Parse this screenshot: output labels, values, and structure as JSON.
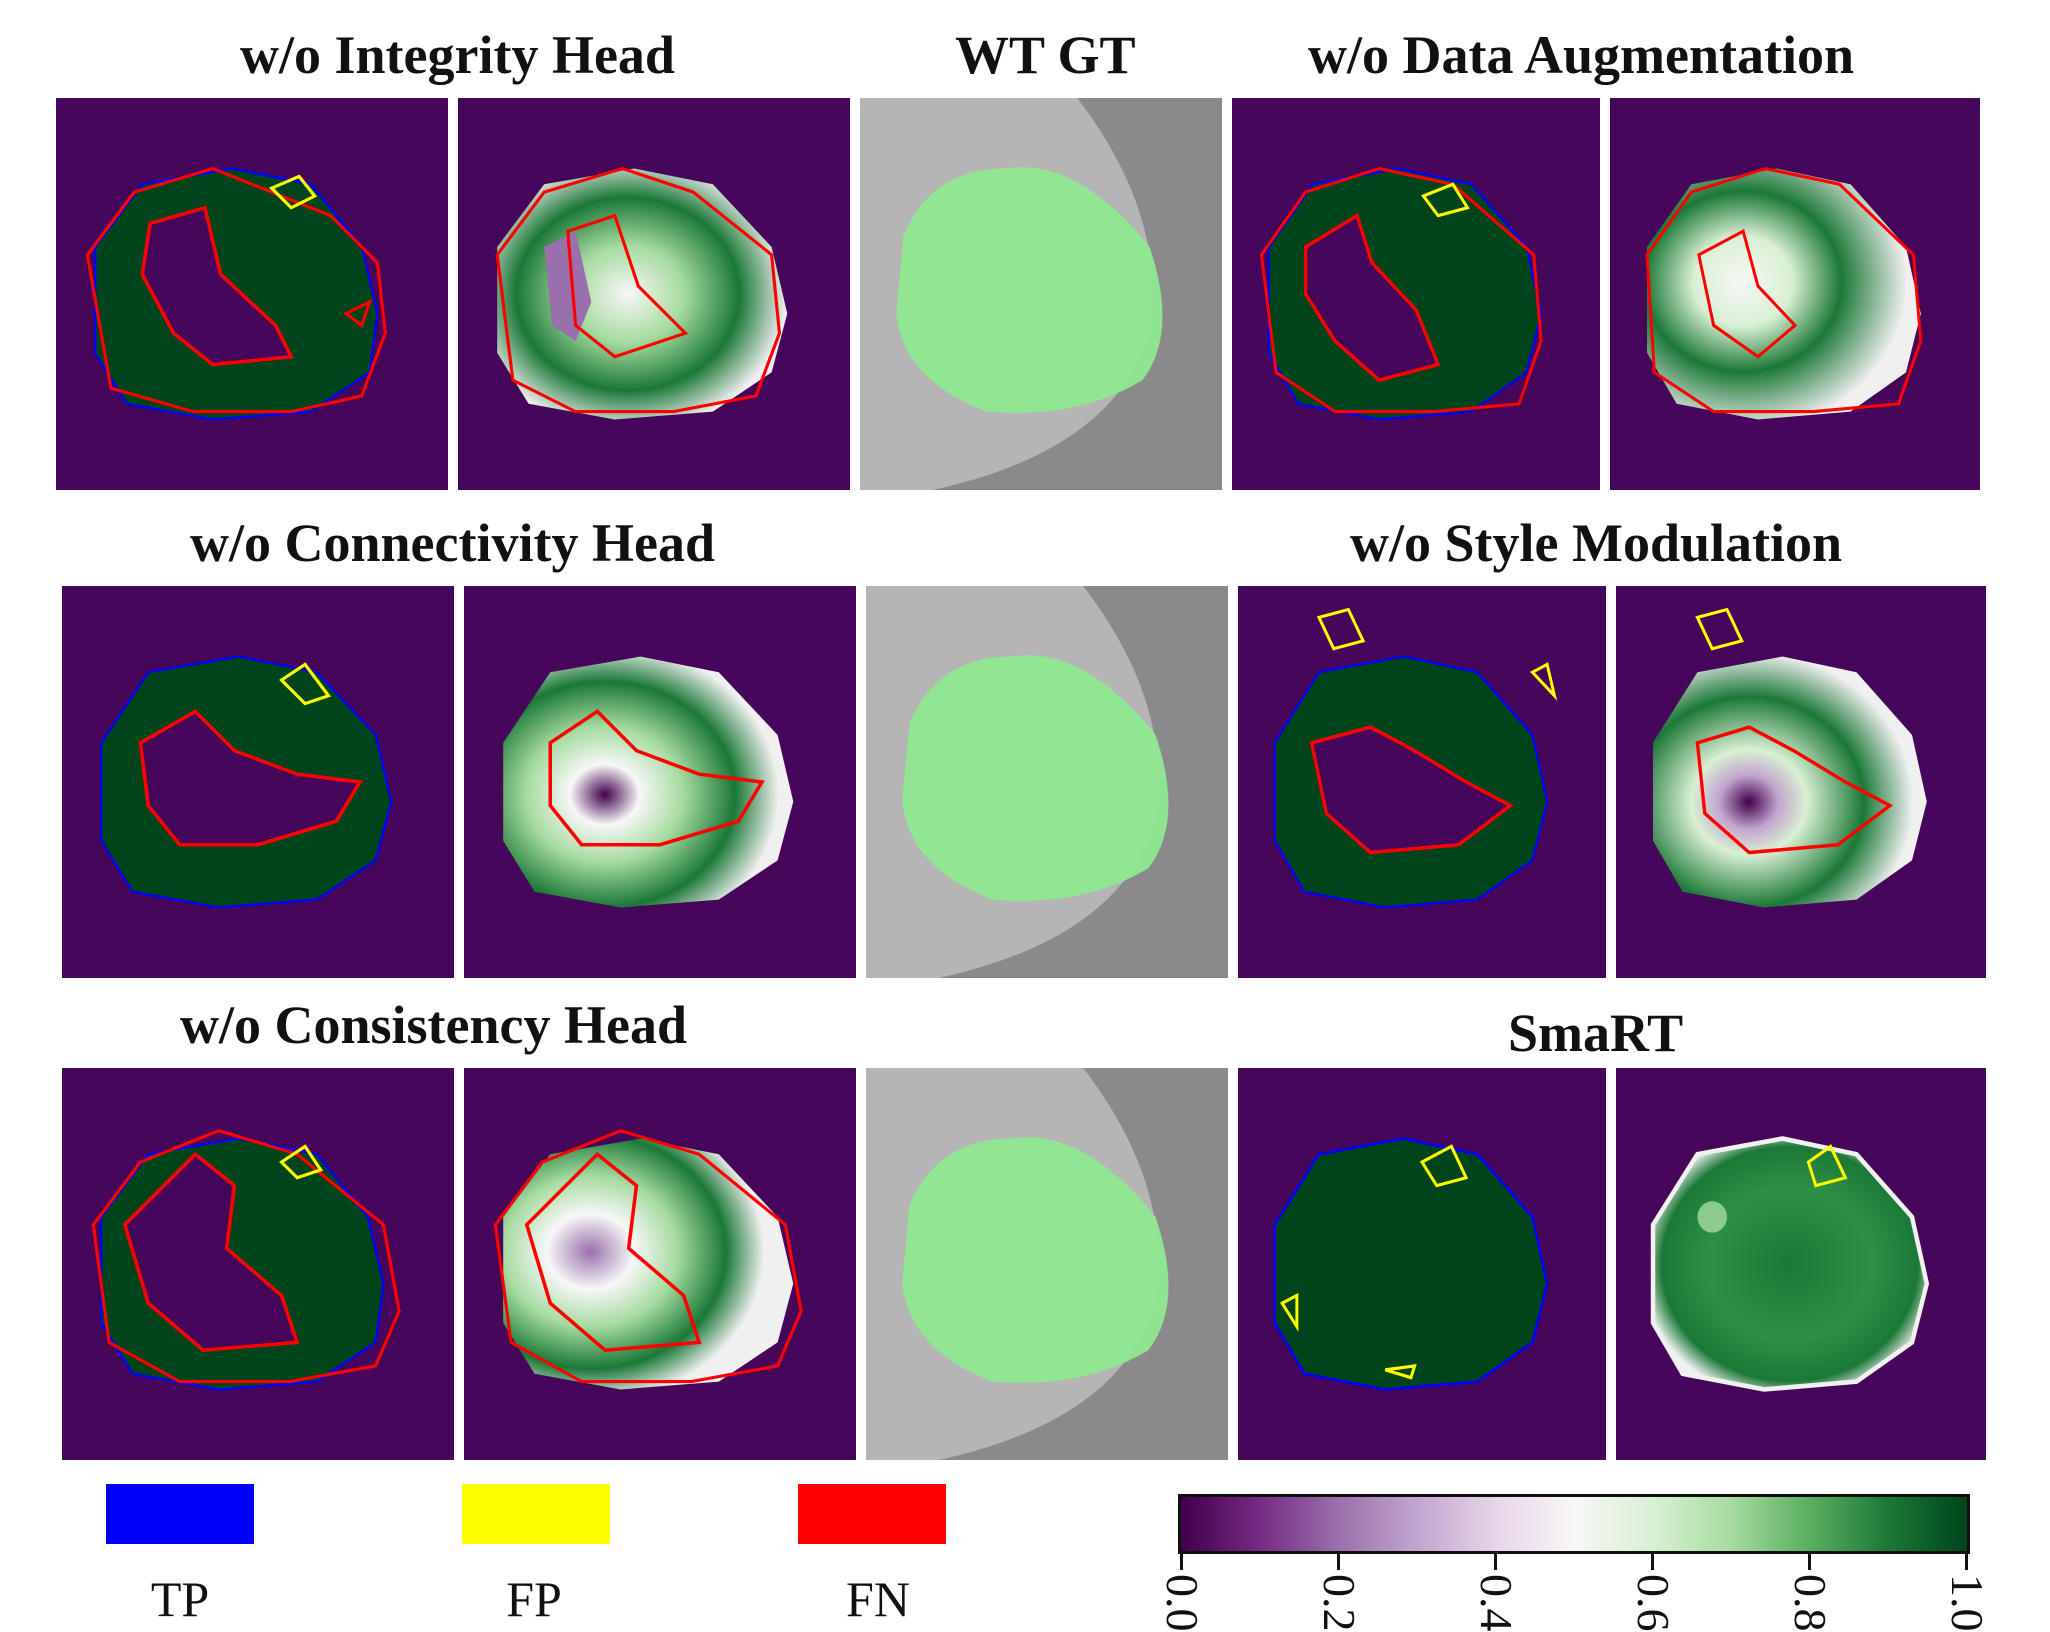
{
  "titles": {
    "integrity": "w/o Integrity Head",
    "wt_gt": "WT GT",
    "data_aug": "w/o Data Augmentation",
    "connectivity": "w/o Connectivity Head",
    "style": "w/o Style Modulation",
    "consistency": "w/o Consistency Head",
    "smart": "SmaRT"
  },
  "legend": {
    "tp": "TP",
    "fp": "FP",
    "fn": "FN",
    "tp_color": "#0000ff",
    "fp_color": "#ffff00",
    "fn_color": "#ff0000"
  },
  "colorbar": {
    "ticks": [
      "0.0",
      "0.2",
      "0.4",
      "0.6",
      "0.8",
      "1.0"
    ],
    "range": [
      0.0,
      1.0
    ],
    "colormap": "PRGn"
  },
  "colors": {
    "background_panel": "#46075a",
    "tp_region": "#00441b",
    "gt_overlay": "#90e890",
    "mri_gray": "#8a8a8a"
  },
  "ablation_panels": [
    {
      "id": "integrity-seg",
      "hole": "large",
      "fn_level": "high"
    },
    {
      "id": "integrity-conf",
      "hole": "large",
      "fn_level": "high"
    },
    {
      "id": "data-aug-seg",
      "hole": "large",
      "fn_level": "high"
    },
    {
      "id": "data-aug-conf",
      "hole": "large",
      "fn_level": "high"
    },
    {
      "id": "connectivity-seg",
      "hole": "medium",
      "fn_level": "medium"
    },
    {
      "id": "connectivity-conf",
      "hole": "medium",
      "fn_level": "medium"
    },
    {
      "id": "style-seg",
      "hole": "medium",
      "fn_level": "medium"
    },
    {
      "id": "style-conf",
      "hole": "medium",
      "fn_level": "medium"
    },
    {
      "id": "consistency-seg",
      "hole": "large",
      "fn_level": "high"
    },
    {
      "id": "consistency-conf",
      "hole": "large",
      "fn_level": "high"
    },
    {
      "id": "smart-seg",
      "hole": "none",
      "fn_level": "low"
    },
    {
      "id": "smart-conf",
      "hole": "none",
      "fn_level": "low"
    }
  ]
}
